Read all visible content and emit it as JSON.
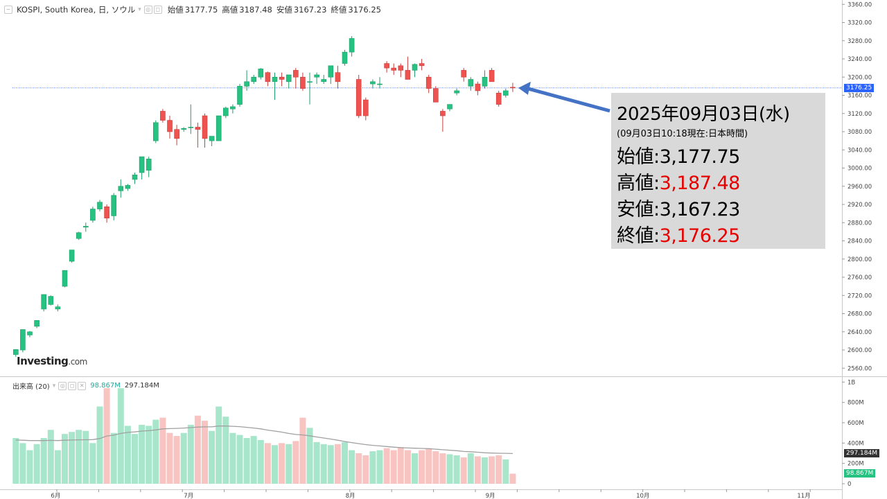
{
  "header": {
    "symbol": "KOSPI, South Korea, 日, ソウル",
    "ohlc": [
      {
        "label": "始値",
        "value": "3177.75"
      },
      {
        "label": "高値",
        "value": "3187.48"
      },
      {
        "label": "安値",
        "value": "3167.23"
      },
      {
        "label": "終値",
        "value": "3176.25"
      }
    ]
  },
  "volume_header": {
    "label": "出来高 (20)",
    "current": "98.867M",
    "average": "297.184M"
  },
  "logo": {
    "main": "Investing",
    "suffix": ".com"
  },
  "price_axis_labels": [
    "3360.00",
    "3320.00",
    "3280.00",
    "3240.00",
    "3200.00",
    "3160.00",
    "3120.00",
    "3080.00",
    "3040.00",
    "3000.00",
    "2960.00",
    "2920.00",
    "2880.00",
    "2840.00",
    "2800.00",
    "2760.00",
    "2720.00",
    "2680.00",
    "2640.00",
    "2600.00",
    "2560.00"
  ],
  "volume_axis_labels": [
    "1B",
    "800M",
    "600M",
    "400M",
    "200M",
    "0"
  ],
  "x_axis_labels": [
    "6月",
    "7月",
    "8月",
    "9月",
    "10月",
    "11月"
  ],
  "current_price_tag": "3176.25",
  "volume_tags": {
    "average": "297.184M",
    "current": "98.867M"
  },
  "info_panel": {
    "date": "2025年09月03日(水)",
    "subtitle": "(09月03日10:18現在:日本時間)",
    "open_label": "始値:",
    "open_value": "3,177.75",
    "high_label": "高値:",
    "high_value": "3,187.48",
    "low_label": "安値:",
    "low_value": "3,167.23",
    "close_label": "終値:",
    "close_value": "3,176.25"
  },
  "colors": {
    "up": "#26c281",
    "down": "#ef5350",
    "vol_up": "#a8e6cc",
    "vol_down": "#f8c4c1",
    "arrow": "#4472c4",
    "price_line": "#2962ff",
    "value_red": "#e60000"
  },
  "chart_data": {
    "type": "candlestick",
    "price_range": [
      2550,
      3370
    ],
    "volume_range": [
      0,
      1000000000
    ],
    "candles": [
      {
        "o": 2590,
        "h": 2602,
        "l": 2585,
        "c": 2601
      },
      {
        "o": 2600,
        "h": 2645,
        "l": 2595,
        "c": 2645
      },
      {
        "o": 2633,
        "h": 2642,
        "l": 2628,
        "c": 2640
      },
      {
        "o": 2652,
        "h": 2665,
        "l": 2648,
        "c": 2665
      },
      {
        "o": 2690,
        "h": 2722,
        "l": 2685,
        "c": 2722
      },
      {
        "o": 2700,
        "h": 2720,
        "l": 2698,
        "c": 2718
      },
      {
        "o": 2690,
        "h": 2700,
        "l": 2685,
        "c": 2695
      },
      {
        "o": 2740,
        "h": 2775,
        "l": 2738,
        "c": 2775
      },
      {
        "o": 2795,
        "h": 2820,
        "l": 2792,
        "c": 2820
      },
      {
        "o": 2845,
        "h": 2860,
        "l": 2842,
        "c": 2858
      },
      {
        "o": 2870,
        "h": 2880,
        "l": 2860,
        "c": 2872
      },
      {
        "o": 2885,
        "h": 2915,
        "l": 2880,
        "c": 2910
      },
      {
        "o": 2910,
        "h": 2930,
        "l": 2905,
        "c": 2925
      },
      {
        "o": 2915,
        "h": 2920,
        "l": 2880,
        "c": 2890
      },
      {
        "o": 2895,
        "h": 2945,
        "l": 2885,
        "c": 2940
      },
      {
        "o": 2950,
        "h": 2975,
        "l": 2935,
        "c": 2960
      },
      {
        "o": 2955,
        "h": 2965,
        "l": 2950,
        "c": 2962
      },
      {
        "o": 2975,
        "h": 2990,
        "l": 2965,
        "c": 2985
      },
      {
        "o": 2990,
        "h": 3025,
        "l": 2975,
        "c": 3025
      },
      {
        "o": 2995,
        "h": 3025,
        "l": 2980,
        "c": 3020
      },
      {
        "o": 3060,
        "h": 3105,
        "l": 3055,
        "c": 3100
      },
      {
        "o": 3125,
        "h": 3130,
        "l": 3100,
        "c": 3105
      },
      {
        "o": 3105,
        "h": 3115,
        "l": 3065,
        "c": 3080
      },
      {
        "o": 3085,
        "h": 3095,
        "l": 3050,
        "c": 3065
      },
      {
        "o": 3085,
        "h": 3090,
        "l": 3080,
        "c": 3087
      },
      {
        "o": 3090,
        "h": 3140,
        "l": 3075,
        "c": 3090
      },
      {
        "o": 3090,
        "h": 3100,
        "l": 3045,
        "c": 3085
      },
      {
        "o": 3115,
        "h": 3120,
        "l": 3045,
        "c": 3065
      },
      {
        "o": 3060,
        "h": 3070,
        "l": 3048,
        "c": 3070
      },
      {
        "o": 3060,
        "h": 3115,
        "l": 3060,
        "c": 3115
      },
      {
        "o": 3115,
        "h": 3135,
        "l": 3110,
        "c": 3132
      },
      {
        "o": 3130,
        "h": 3140,
        "l": 3120,
        "c": 3135
      },
      {
        "o": 3140,
        "h": 3185,
        "l": 3135,
        "c": 3180
      },
      {
        "o": 3180,
        "h": 3215,
        "l": 3170,
        "c": 3190
      },
      {
        "o": 3190,
        "h": 3205,
        "l": 3185,
        "c": 3200
      },
      {
        "o": 3200,
        "h": 3220,
        "l": 3195,
        "c": 3218
      },
      {
        "o": 3210,
        "h": 3212,
        "l": 3180,
        "c": 3190
      },
      {
        "o": 3190,
        "h": 3210,
        "l": 3150,
        "c": 3200
      },
      {
        "o": 3200,
        "h": 3210,
        "l": 3180,
        "c": 3195
      },
      {
        "o": 3190,
        "h": 3205,
        "l": 3175,
        "c": 3205
      },
      {
        "o": 3215,
        "h": 3220,
        "l": 3175,
        "c": 3200
      },
      {
        "o": 3200,
        "h": 3210,
        "l": 3170,
        "c": 3175
      },
      {
        "o": 3190,
        "h": 3210,
        "l": 3140,
        "c": 3190
      },
      {
        "o": 3200,
        "h": 3210,
        "l": 3185,
        "c": 3205
      },
      {
        "o": 3190,
        "h": 3205,
        "l": 3185,
        "c": 3195
      },
      {
        "o": 3200,
        "h": 3225,
        "l": 3185,
        "c": 3225
      },
      {
        "o": 3210,
        "h": 3225,
        "l": 3175,
        "c": 3190
      },
      {
        "o": 3230,
        "h": 3260,
        "l": 3225,
        "c": 3255
      },
      {
        "o": 3255,
        "h": 3290,
        "l": 3245,
        "c": 3285
      },
      {
        "o": 3195,
        "h": 3205,
        "l": 3110,
        "c": 3115
      },
      {
        "o": 3150,
        "h": 3155,
        "l": 3105,
        "c": 3115
      },
      {
        "o": 3185,
        "h": 3195,
        "l": 3175,
        "c": 3190
      },
      {
        "o": 3185,
        "h": 3200,
        "l": 3175,
        "c": 3185
      },
      {
        "o": 3230,
        "h": 3235,
        "l": 3210,
        "c": 3220
      },
      {
        "o": 3220,
        "h": 3230,
        "l": 3205,
        "c": 3215
      },
      {
        "o": 3225,
        "h": 3230,
        "l": 3200,
        "c": 3215
      },
      {
        "o": 3215,
        "h": 3245,
        "l": 3195,
        "c": 3195
      },
      {
        "o": 3215,
        "h": 3230,
        "l": 3200,
        "c": 3228
      },
      {
        "o": 3230,
        "h": 3240,
        "l": 3215,
        "c": 3225
      },
      {
        "o": 3200,
        "h": 3205,
        "l": 3165,
        "c": 3175
      },
      {
        "o": 3175,
        "h": 3180,
        "l": 3145,
        "c": 3145
      },
      {
        "o": 3125,
        "h": 3130,
        "l": 3080,
        "c": 3115
      },
      {
        "o": 3130,
        "h": 3140,
        "l": 3125,
        "c": 3140
      },
      {
        "o": 3165,
        "h": 3175,
        "l": 3160,
        "c": 3170
      },
      {
        "o": 3215,
        "h": 3220,
        "l": 3190,
        "c": 3200
      },
      {
        "o": 3180,
        "h": 3200,
        "l": 3170,
        "c": 3195
      },
      {
        "o": 3185,
        "h": 3190,
        "l": 3160,
        "c": 3170
      },
      {
        "o": 3180,
        "h": 3215,
        "l": 3175,
        "c": 3200
      },
      {
        "o": 3215,
        "h": 3220,
        "l": 3190,
        "c": 3190
      },
      {
        "o": 3165,
        "h": 3170,
        "l": 3135,
        "c": 3140
      },
      {
        "o": 3160,
        "h": 3175,
        "l": 3155,
        "c": 3170
      },
      {
        "o": 3177.75,
        "h": 3187.48,
        "l": 3167.23,
        "c": 3176.25
      }
    ],
    "volumes_m": [
      450,
      400,
      330,
      390,
      450,
      530,
      330,
      490,
      510,
      530,
      520,
      400,
      760,
      940,
      500,
      940,
      570,
      490,
      580,
      570,
      630,
      650,
      500,
      470,
      500,
      580,
      670,
      620,
      520,
      760,
      660,
      500,
      480,
      450,
      470,
      430,
      400,
      380,
      400,
      390,
      420,
      650,
      550,
      410,
      390,
      380,
      390,
      410,
      330,
      300,
      280,
      320,
      330,
      350,
      330,
      360,
      330,
      300,
      330,
      350,
      320,
      300,
      290,
      280,
      260,
      300,
      270,
      260,
      270,
      280,
      240,
      99
    ],
    "avg_volume_m": [
      430,
      428,
      425,
      425,
      425,
      427,
      425,
      428,
      430,
      432,
      433,
      434,
      445,
      470,
      478,
      495,
      505,
      510,
      518,
      522,
      530,
      540,
      543,
      545,
      548,
      552,
      558,
      560,
      560,
      568,
      568,
      565,
      562,
      555,
      548,
      540,
      528,
      518,
      508,
      495,
      485,
      480,
      472,
      460,
      450,
      440,
      428,
      416,
      405,
      395,
      385,
      378,
      372,
      366,
      360,
      355,
      352,
      350,
      348,
      345,
      340,
      335,
      330,
      325,
      318,
      315,
      310,
      305,
      302,
      300,
      299,
      297
    ],
    "month_ticks": [
      {
        "label": "6月",
        "index": 5.7
      },
      {
        "label": "7月",
        "index": 24.7
      },
      {
        "label": "8月",
        "index": 47.8
      },
      {
        "label": "9月",
        "index": 67.8
      },
      {
        "label": "10月",
        "index": 89.6
      },
      {
        "label": "11月",
        "index": 112.6
      }
    ]
  }
}
